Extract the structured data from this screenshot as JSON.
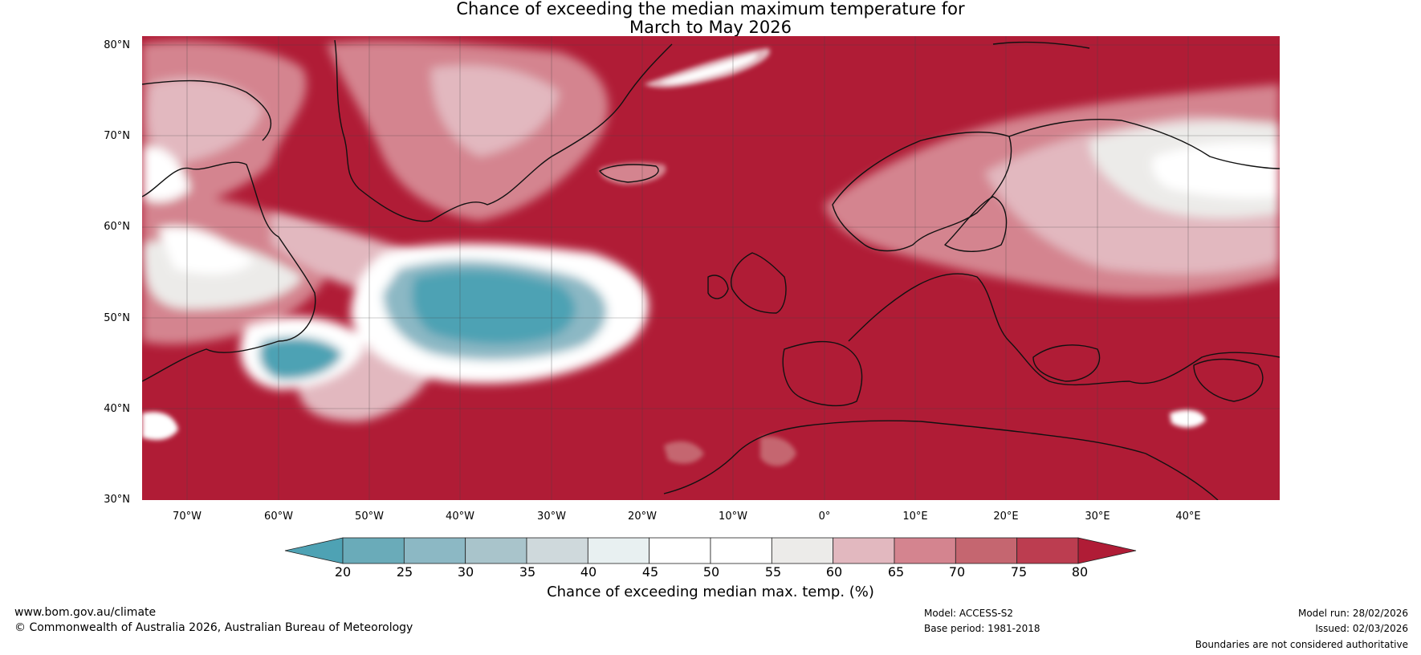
{
  "title": {
    "line1": "Chance of exceeding the median maximum temperature for",
    "line2": "March to May 2026"
  },
  "map": {
    "latitude_labels": [
      "80°N",
      "70°N",
      "60°N",
      "50°N",
      "40°N",
      "30°N"
    ],
    "longitude_labels": [
      "70°W",
      "60°W",
      "50°W",
      "40°W",
      "30°W",
      "20°W",
      "10°W",
      "0°",
      "10°E",
      "20°E",
      "30°E",
      "40°E"
    ],
    "extent": {
      "lon_min": -75,
      "lon_max": 50,
      "lat_min": 30,
      "lat_max": 81
    },
    "colors": {
      "dominant": "#b01c36",
      "ocean_cool_core": "#4aa3b8",
      "coastline": "#111111",
      "borders": "#7a7a7a",
      "gridline": "#444444"
    }
  },
  "colorbar": {
    "ticks": [
      "20",
      "25",
      "30",
      "35",
      "40",
      "45",
      "50",
      "55",
      "60",
      "65",
      "70",
      "75",
      "80"
    ],
    "colors": [
      "#4ea2b4",
      "#6aabb9",
      "#8cb8c4",
      "#a9c4cb",
      "#cfd9dc",
      "#e8f0f1",
      "#ffffff",
      "#ffffff",
      "#ecebe9",
      "#e2b8bf",
      "#d4848f",
      "#c56670",
      "#bc3d50",
      "#b01c36"
    ],
    "label": "Chance of exceeding median max. temp. (%)"
  },
  "footer": {
    "url": "www.bom.gov.au/climate",
    "copyright": "© Commonwealth of Australia 2026, Australian Bureau of Meteorology",
    "model": "Model: ACCESS-S2",
    "base_period": "Base period: 1981-2018",
    "model_run": "Model run: 28/02/2026",
    "issued": "Issued: 02/03/2026",
    "disclaimer": "Boundaries are not considered authoritative"
  }
}
